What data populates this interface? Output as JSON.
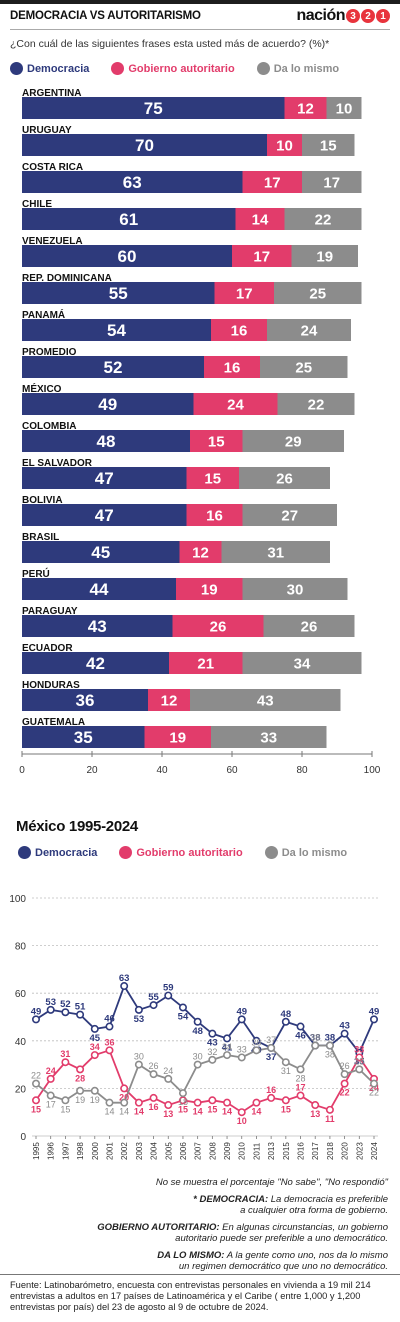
{
  "header": {
    "title": "DEMOCRACIA VS AUTORITARISMO",
    "brand_text": "nación",
    "brand_digits": [
      "3",
      "2",
      "1"
    ]
  },
  "question": "¿Con cuál de las siguientes frases esta usted más de acuerdo? (%)*",
  "colors": {
    "democracia": "#2e3a7c",
    "autoritario": "#e23c6b",
    "mismo": "#8c8c8c",
    "grid": "#bdbdbd"
  },
  "chart_data": [
    {
      "type": "bar",
      "stacked": true,
      "orientation": "horizontal",
      "categories": [
        "ARGENTINA",
        "URUGUAY",
        "COSTA RICA",
        "CHILE",
        "VENEZUELA",
        "REP. DOMINICANA",
        "PANAMÁ",
        "PROMEDIO",
        "MÉXICO",
        "COLOMBIA",
        "EL SALVADOR",
        "BOLIVIA",
        "BRASIL",
        "PERÚ",
        "PARAGUAY",
        "ECUADOR",
        "HONDURAS",
        "GUATEMALA"
      ],
      "series": [
        {
          "name": "Democracia",
          "values": [
            75,
            70,
            63,
            61,
            60,
            55,
            54,
            52,
            49,
            48,
            47,
            47,
            45,
            44,
            43,
            42,
            36,
            35
          ]
        },
        {
          "name": "Gobierno autoritario",
          "values": [
            12,
            10,
            17,
            14,
            17,
            17,
            16,
            16,
            24,
            15,
            15,
            16,
            12,
            19,
            26,
            21,
            12,
            19
          ]
        },
        {
          "name": "Da lo mismo",
          "values": [
            10,
            15,
            17,
            22,
            19,
            25,
            24,
            25,
            22,
            29,
            26,
            27,
            31,
            30,
            26,
            34,
            43,
            33
          ]
        }
      ],
      "xlim": [
        0,
        100
      ],
      "xticks": [
        0,
        20,
        40,
        60,
        80,
        100
      ],
      "legend": "top-left"
    },
    {
      "type": "line",
      "title": "México 1995-2024",
      "x": [
        "1995",
        "1996",
        "1997",
        "1998",
        "2000",
        "2001",
        "2002",
        "2003",
        "2004",
        "2005",
        "2006",
        "2007",
        "2008",
        "2009",
        "2010",
        "2011",
        "2013",
        "2015",
        "2016",
        "2017",
        "2018",
        "2020",
        "2023",
        "2024"
      ],
      "series": [
        {
          "name": "Democracia",
          "values": [
            49,
            53,
            52,
            51,
            45,
            46,
            63,
            53,
            55,
            59,
            54,
            48,
            43,
            41,
            49,
            40,
            37,
            48,
            46,
            38,
            38,
            43,
            35,
            49
          ]
        },
        {
          "name": "Gobierno autoritario",
          "values": [
            15,
            24,
            31,
            28,
            34,
            36,
            20,
            14,
            16,
            13,
            15,
            14,
            15,
            14,
            10,
            14,
            16,
            15,
            17,
            13,
            11,
            22,
            33,
            24
          ]
        },
        {
          "name": "Da lo mismo",
          "values": [
            22,
            17,
            15,
            19,
            19,
            14,
            14,
            30,
            26,
            24,
            18,
            30,
            32,
            34,
            33,
            36,
            37,
            31,
            28,
            38,
            38,
            26,
            28,
            22
          ]
        }
      ],
      "ylim": [
        0,
        100
      ],
      "yticks": [
        0,
        20,
        40,
        60,
        80,
        100
      ],
      "grid": true,
      "legend": "top-left"
    }
  ],
  "notes": {
    "not_shown": "No se muestra el porcentaje \"No sabe\", \"No respondió\"",
    "dem_term": "* DEMOCRACIA:",
    "dem_def_1": "La democracia es preferible",
    "dem_def_2": "a cualquier otra forma de gobierno.",
    "aut_term": "GOBIERNO AUTORITARIO:",
    "aut_def_1": "En algunas circunstancias, un gobierno",
    "aut_def_2": "autoritario puede ser preferible a uno democrático.",
    "mis_term": "DA LO MISMO:",
    "mis_def_1": "A la gente como uno, nos da lo mismo",
    "mis_def_2": "un regimen democrático que uno no democrático."
  },
  "source": "Fuente: Latinobarómetro, encuesta con entrevistas personales en vivienda a 19 mil 214 entrevistas a adultos en 17 países de Latinoamérica y el Caribe ( entre 1,000 y 1,200 entrevistas por país) del 23 de agosto al 9 de octubre de 2024."
}
